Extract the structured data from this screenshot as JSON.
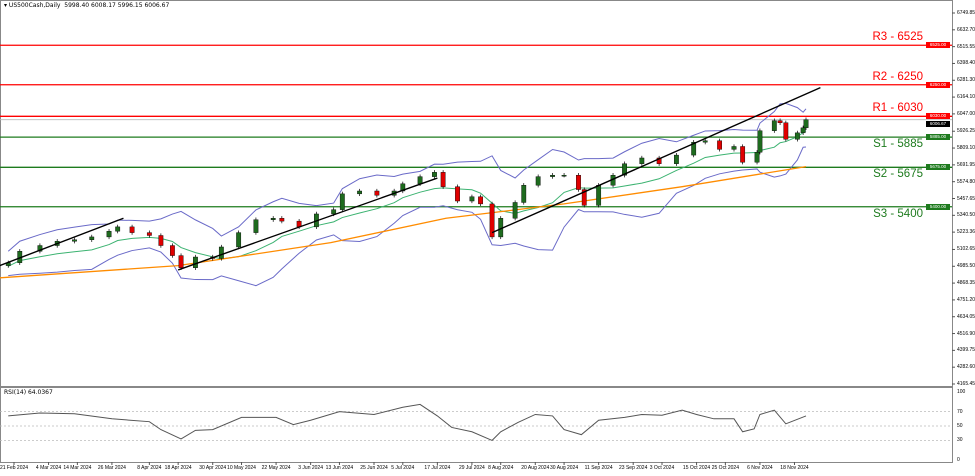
{
  "header": {
    "symbol": "US500Cash,Daily",
    "ohlc": "5998.40 6008.17 5996.15 6006.67"
  },
  "rsi": {
    "title": "RSI(14) 64.0367",
    "levels": [
      "100",
      "70",
      "50",
      "30",
      "0"
    ]
  },
  "colors": {
    "resistance": "#ff0000",
    "support": "#1e7b1e",
    "bull": "#1e6b1e",
    "bear": "#e00000",
    "bands": "#6a6ac8",
    "ma_fast": "#3cb371",
    "ma_slow": "#ff8c00",
    "trend": "#000000"
  },
  "levels": [
    {
      "label": "R3 - 6525",
      "price": 6525,
      "tag": "6525.00",
      "type": "resistance"
    },
    {
      "label": "R2 - 6250",
      "price": 6250,
      "tag": "6250.00",
      "type": "resistance"
    },
    {
      "label": "R1 - 6030",
      "price": 6030,
      "tag": "6030.00",
      "type": "resistance"
    },
    {
      "label": "S1 - 5885",
      "price": 5885,
      "tag": "5885.00",
      "type": "support"
    },
    {
      "label": "S2 - 5675",
      "price": 5675,
      "tag": "5675.00",
      "type": "support"
    },
    {
      "label": "S3 - 5400",
      "price": 5400,
      "tag": "5400.00",
      "type": "support"
    }
  ],
  "current_price": {
    "price": 6006.67,
    "tag": "6006.67"
  },
  "y_axis": [
    "6749.85",
    "6632.70",
    "6515.55",
    "6398.40",
    "6281.30",
    "6164.10",
    "6047.00",
    "5926.25",
    "5809.10",
    "5691.95",
    "5574.80",
    "5457.65",
    "5340.50",
    "5223.36",
    "5102.65",
    "4985.50",
    "4868.35",
    "4751.20",
    "4634.05",
    "4516.90",
    "4399.75",
    "4282.60",
    "4165.45"
  ],
  "x_axis": [
    "21 Feb 2024",
    "4 Mar 2024",
    "14 Mar 2024",
    "26 Mar 2024",
    "8 Apr 2024",
    "18 Apr 2024",
    "30 Apr 2024",
    "10 May 2024",
    "22 May 2024",
    "3 Jun 2024",
    "13 Jun 2024",
    "25 Jun 2024",
    "5 Jul 2024",
    "17 Jul 2024",
    "29 Jul 2024",
    "8 Aug 2024",
    "20 Aug 2024",
    "30 Aug 2024",
    "11 Sep 2024",
    "23 Sep 2024",
    "3 Oct 2024",
    "15 Oct 2024",
    "25 Oct 2024",
    "6 Nov 2024",
    "18 Nov 2024"
  ],
  "chart_data": {
    "type": "candlestick",
    "ylim": [
      4165.45,
      6749.85
    ],
    "closes": [
      [
        "2024-02-19",
        5010
      ],
      [
        "2024-02-23",
        5090
      ],
      [
        "2024-03-01",
        5130
      ],
      [
        "2024-03-07",
        5160
      ],
      [
        "2024-03-13",
        5170
      ],
      [
        "2024-03-19",
        5190
      ],
      [
        "2024-03-25",
        5230
      ],
      [
        "2024-03-28",
        5260
      ],
      [
        "2024-04-02",
        5220
      ],
      [
        "2024-04-08",
        5200
      ],
      [
        "2024-04-12",
        5130
      ],
      [
        "2024-04-16",
        5060
      ],
      [
        "2024-04-19",
        4975
      ],
      [
        "2024-04-24",
        5050
      ],
      [
        "2024-04-30",
        5040
      ],
      [
        "2024-05-03",
        5120
      ],
      [
        "2024-05-09",
        5220
      ],
      [
        "2024-05-15",
        5310
      ],
      [
        "2024-05-21",
        5320
      ],
      [
        "2024-05-24",
        5300
      ],
      [
        "2024-05-30",
        5260
      ],
      [
        "2024-06-05",
        5350
      ],
      [
        "2024-06-11",
        5380
      ],
      [
        "2024-06-14",
        5490
      ],
      [
        "2024-06-20",
        5510
      ],
      [
        "2024-06-26",
        5480
      ],
      [
        "2024-07-02",
        5510
      ],
      [
        "2024-07-05",
        5560
      ],
      [
        "2024-07-11",
        5610
      ],
      [
        "2024-07-16",
        5640
      ],
      [
        "2024-07-19",
        5540
      ],
      [
        "2024-07-24",
        5440
      ],
      [
        "2024-07-29",
        5470
      ],
      [
        "2024-08-01",
        5420
      ],
      [
        "2024-08-05",
        5190
      ],
      [
        "2024-08-08",
        5320
      ],
      [
        "2024-08-13",
        5430
      ],
      [
        "2024-08-16",
        5550
      ],
      [
        "2024-08-21",
        5610
      ],
      [
        "2024-08-26",
        5620
      ],
      [
        "2024-08-30",
        5620
      ],
      [
        "2024-09-04",
        5520
      ],
      [
        "2024-09-06",
        5410
      ],
      [
        "2024-09-11",
        5550
      ],
      [
        "2024-09-16",
        5620
      ],
      [
        "2024-09-20",
        5700
      ],
      [
        "2024-09-26",
        5740
      ],
      [
        "2024-10-02",
        5700
      ],
      [
        "2024-10-08",
        5760
      ],
      [
        "2024-10-14",
        5850
      ],
      [
        "2024-10-18",
        5860
      ],
      [
        "2024-10-23",
        5800
      ],
      [
        "2024-10-28",
        5820
      ],
      [
        "2024-10-31",
        5710
      ],
      [
        "2024-11-05",
        5780
      ],
      [
        "2024-11-06",
        5930
      ],
      [
        "2024-11-11",
        6000
      ],
      [
        "2024-11-13",
        5985
      ],
      [
        "2024-11-15",
        5870
      ],
      [
        "2024-11-19",
        5915
      ],
      [
        "2024-11-21",
        5950
      ],
      [
        "2024-11-22",
        6006.67
      ]
    ],
    "ma_slow": [
      [
        "2024-02-16",
        4905
      ],
      [
        "2024-04-18",
        4990
      ],
      [
        "2024-06-10",
        5150
      ],
      [
        "2024-07-20",
        5320
      ],
      [
        "2024-08-30",
        5420
      ],
      [
        "2024-10-10",
        5540
      ],
      [
        "2024-11-22",
        5680
      ]
    ],
    "trendlines": [
      [
        [
          "2024-02-16",
          4990
        ],
        [
          "2024-03-30",
          5320
        ]
      ],
      [
        [
          "2024-04-18",
          4960
        ],
        [
          "2024-07-17",
          5600
        ]
      ],
      [
        [
          "2024-08-05",
          5220
        ],
        [
          "2024-11-27",
          6230
        ]
      ]
    ],
    "rsi": [
      [
        "2024-02-19",
        64
      ],
      [
        "2024-03-01",
        68
      ],
      [
        "2024-03-13",
        67
      ],
      [
        "2024-03-26",
        60
      ],
      [
        "2024-04-08",
        56
      ],
      [
        "2024-04-12",
        45
      ],
      [
        "2024-04-19",
        32
      ],
      [
        "2024-04-24",
        44
      ],
      [
        "2024-04-30",
        45
      ],
      [
        "2024-05-10",
        62
      ],
      [
        "2024-05-22",
        62
      ],
      [
        "2024-05-28",
        52
      ],
      [
        "2024-06-03",
        58
      ],
      [
        "2024-06-13",
        70
      ],
      [
        "2024-06-25",
        66
      ],
      [
        "2024-07-05",
        76
      ],
      [
        "2024-07-11",
        80
      ],
      [
        "2024-07-17",
        64
      ],
      [
        "2024-07-22",
        48
      ],
      [
        "2024-07-29",
        42
      ],
      [
        "2024-08-05",
        30
      ],
      [
        "2024-08-08",
        42
      ],
      [
        "2024-08-14",
        55
      ],
      [
        "2024-08-20",
        66
      ],
      [
        "2024-08-26",
        64
      ],
      [
        "2024-08-30",
        45
      ],
      [
        "2024-09-05",
        38
      ],
      [
        "2024-09-11",
        58
      ],
      [
        "2024-09-20",
        62
      ],
      [
        "2024-09-26",
        66
      ],
      [
        "2024-10-03",
        65
      ],
      [
        "2024-10-10",
        72
      ],
      [
        "2024-10-15",
        66
      ],
      [
        "2024-10-21",
        60
      ],
      [
        "2024-10-28",
        60
      ],
      [
        "2024-10-31",
        42
      ],
      [
        "2024-11-04",
        46
      ],
      [
        "2024-11-06",
        66
      ],
      [
        "2024-11-11",
        72
      ],
      [
        "2024-11-15",
        53
      ],
      [
        "2024-11-22",
        64
      ]
    ]
  }
}
